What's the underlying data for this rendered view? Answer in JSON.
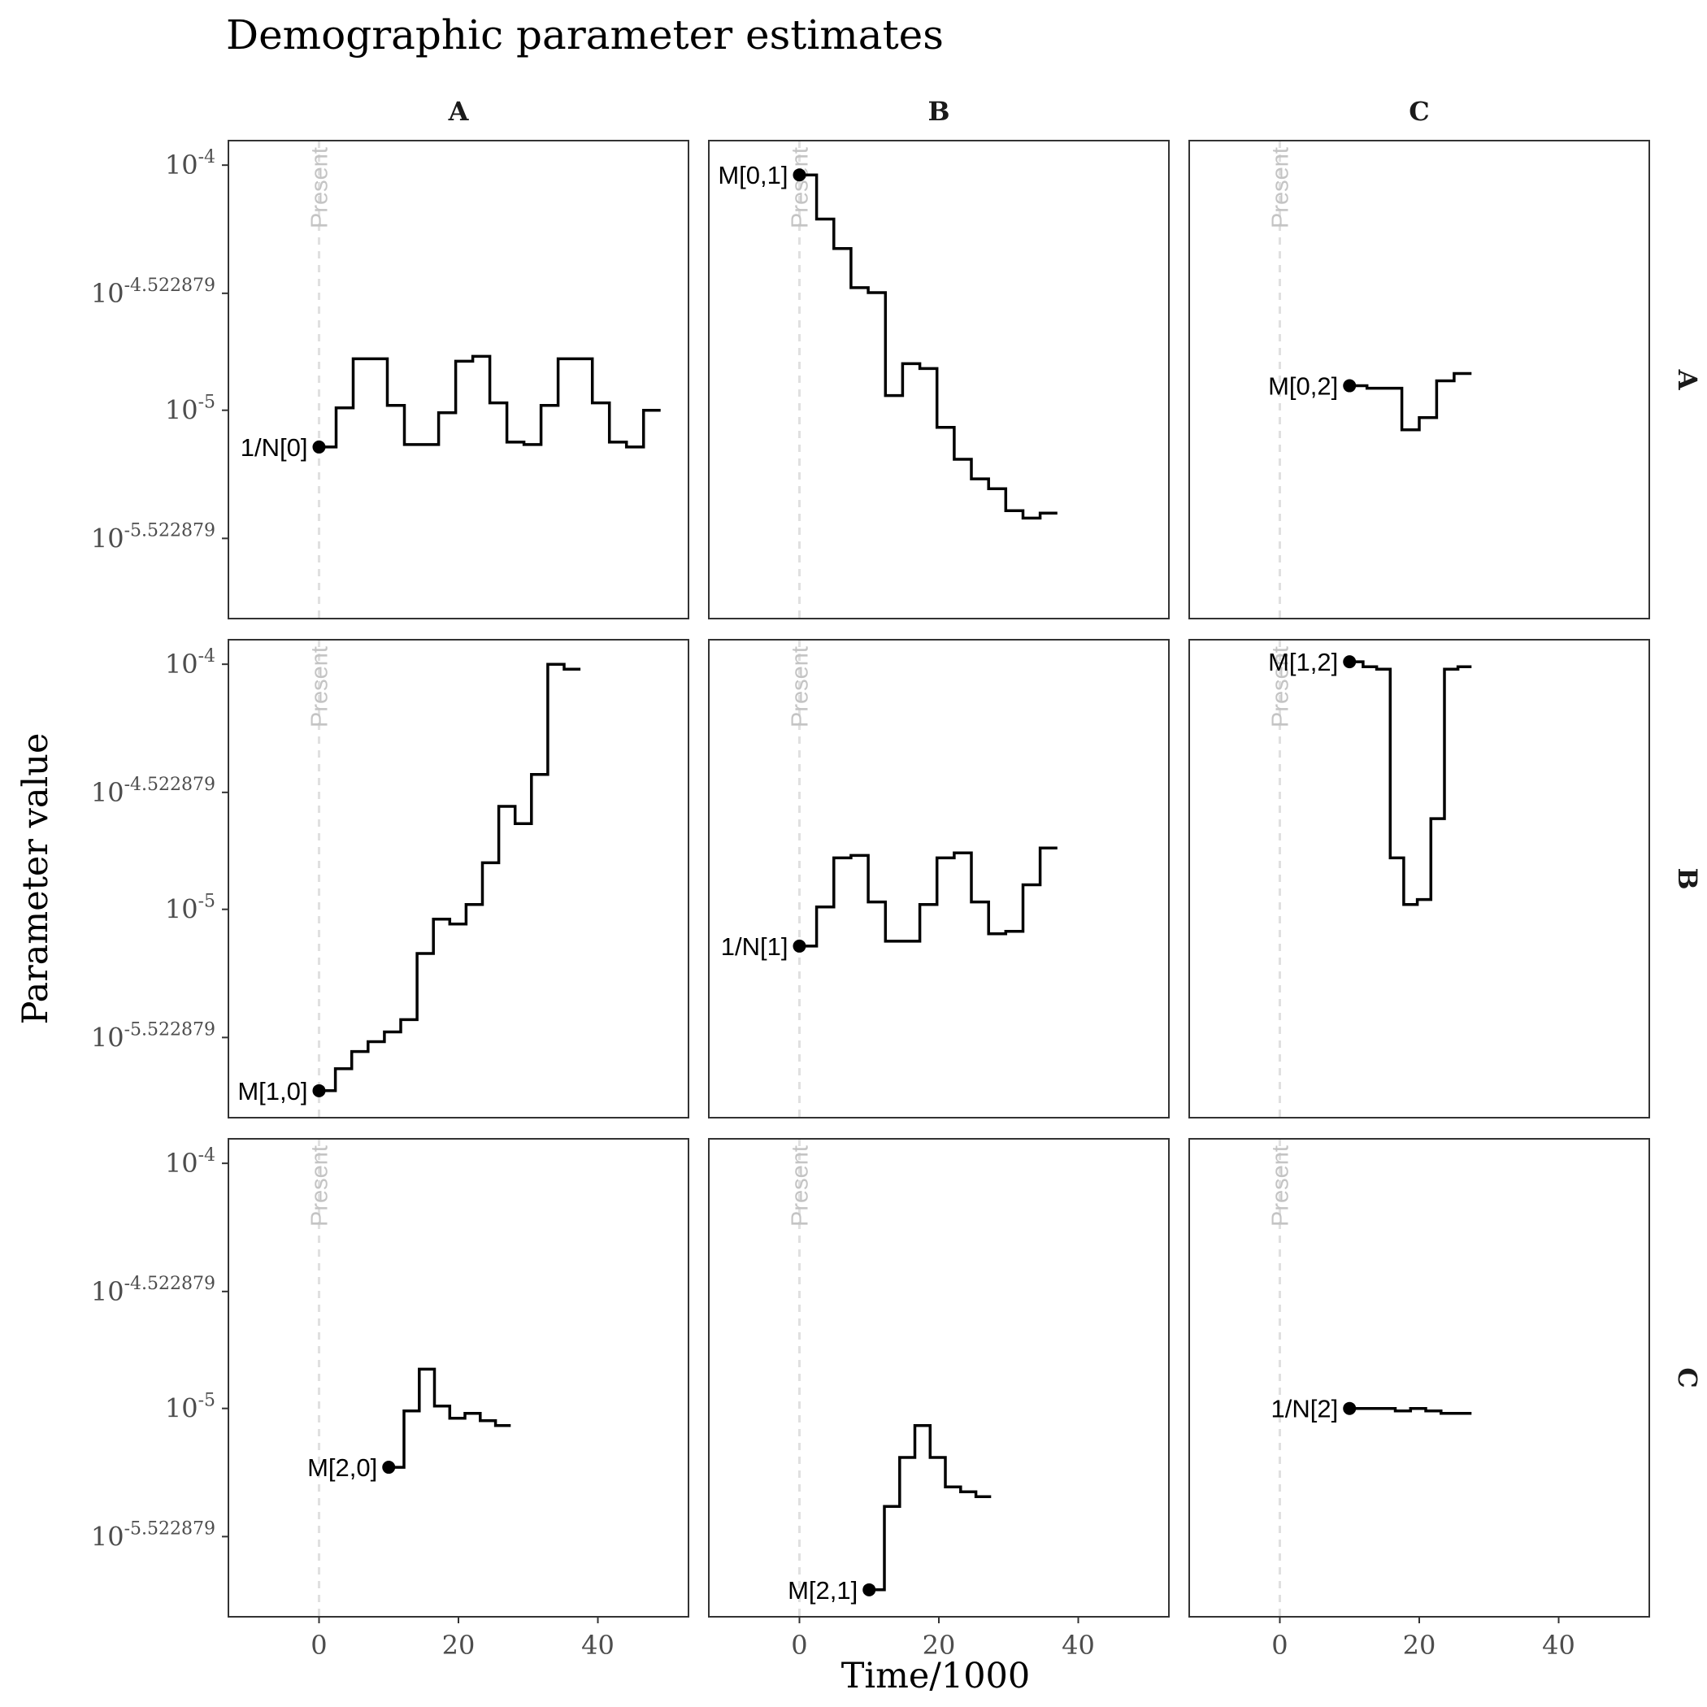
{
  "chart_data": {
    "type": "line",
    "title": "Demographic parameter estimates",
    "xlabel": "Time/1000",
    "ylabel": "Parameter value",
    "y_scale": "log10",
    "xlim": [
      -13,
      53
    ],
    "ylim_log10": [
      -5.85,
      -3.9
    ],
    "x_ticks": [
      0,
      20,
      40
    ],
    "x_tick_labels": [
      "0",
      "20",
      "40"
    ],
    "y_ticks_log10": [
      -4,
      -4.522879,
      -5,
      -5.522879
    ],
    "y_tick_labels": [
      {
        "base": "10",
        "exp": "-4"
      },
      {
        "base": "10",
        "exp": "-4.522879"
      },
      {
        "base": "10",
        "exp": "-5"
      },
      {
        "base": "10",
        "exp": "-5.522879"
      }
    ],
    "col_strips": [
      "A",
      "B",
      "C"
    ],
    "row_strips": [
      "A",
      "B",
      "C"
    ],
    "present_label": "Present",
    "grid": false,
    "panels": [
      {
        "row": 0,
        "col": 0,
        "label": "1/N[0]",
        "label_side": "left",
        "x0": 0,
        "log_values": [
          -5.15,
          -4.99,
          -4.79,
          -4.79,
          -4.98,
          -5.14,
          -5.14,
          -5.01,
          -4.8,
          -4.78,
          -4.97,
          -5.13,
          -5.14,
          -4.98,
          -4.79,
          -4.79,
          -4.97,
          -5.13,
          -5.15,
          -5.0
        ],
        "x_end": 49
      },
      {
        "row": 0,
        "col": 1,
        "label": "M[0,1]",
        "label_side": "left",
        "x0": 0,
        "log_values": [
          -4.04,
          -4.22,
          -4.34,
          -4.5,
          -4.52,
          -4.94,
          -4.81,
          -4.83,
          -5.07,
          -5.2,
          -5.28,
          -5.32,
          -5.41,
          -5.44,
          -5.42
        ],
        "x_end": 37
      },
      {
        "row": 0,
        "col": 2,
        "label": "M[0,2]",
        "label_side": "left",
        "x0": 10,
        "log_values": [
          -4.9,
          -4.91,
          -4.91,
          -5.08,
          -5.03,
          -4.88,
          -4.85
        ],
        "x_end": 27.5
      },
      {
        "row": 1,
        "col": 0,
        "label": "M[1,0]",
        "label_side": "left",
        "x0": 0,
        "log_values": [
          -5.74,
          -5.65,
          -5.58,
          -5.54,
          -5.5,
          -5.45,
          -5.18,
          -5.04,
          -5.06,
          -4.98,
          -4.81,
          -4.58,
          -4.65,
          -4.45,
          -4.0,
          -4.02
        ],
        "x_end": 37.5
      },
      {
        "row": 1,
        "col": 1,
        "label": "1/N[1]",
        "label_side": "left",
        "x0": 0,
        "log_values": [
          -5.15,
          -4.99,
          -4.79,
          -4.78,
          -4.97,
          -5.13,
          -5.13,
          -4.98,
          -4.79,
          -4.77,
          -4.97,
          -5.1,
          -5.09,
          -4.9,
          -4.75
        ],
        "x_end": 37
      },
      {
        "row": 1,
        "col": 2,
        "label": "M[1,2]",
        "label_side": "left",
        "x0": 10,
        "log_values": [
          -3.99,
          -4.01,
          -4.02,
          -4.79,
          -4.98,
          -4.96,
          -4.63,
          -4.02,
          -4.01
        ],
        "x_end": 27.5
      },
      {
        "row": 2,
        "col": 0,
        "label": "M[2,0]",
        "label_side": "left",
        "x0": 10,
        "log_values": [
          -5.24,
          -5.01,
          -4.84,
          -4.99,
          -5.04,
          -5.02,
          -5.05,
          -5.07
        ],
        "x_end": 27.5
      },
      {
        "row": 2,
        "col": 1,
        "label": "M[2,1]",
        "label_side": "left",
        "x0": 10,
        "log_values": [
          -5.74,
          -5.4,
          -5.2,
          -5.07,
          -5.2,
          -5.32,
          -5.34,
          -5.36
        ],
        "x_end": 27.5
      },
      {
        "row": 2,
        "col": 2,
        "label": "1/N[2]",
        "label_side": "left",
        "x0": 10,
        "log_values": [
          -5.0,
          -5.0,
          -5.0,
          -5.01,
          -5.0,
          -5.01,
          -5.02,
          -5.02
        ],
        "x_end": 27.5
      }
    ]
  }
}
